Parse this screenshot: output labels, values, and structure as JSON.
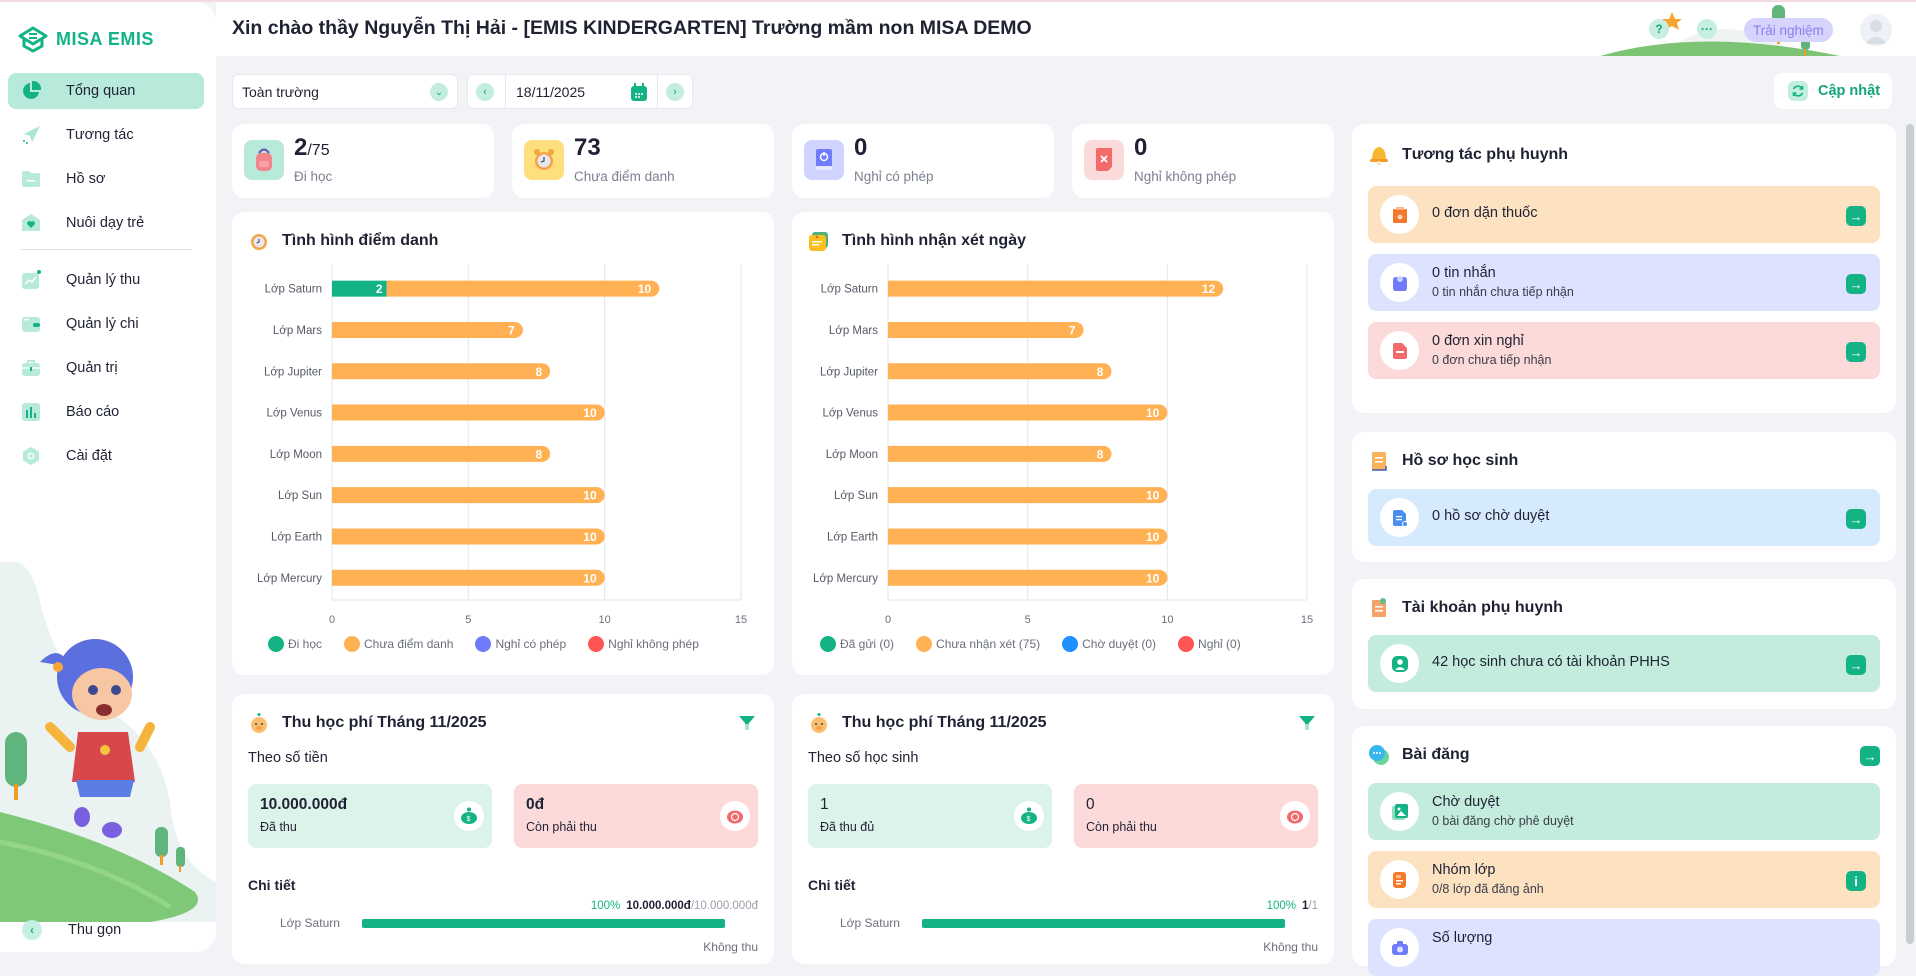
{
  "app": {
    "brand": "MISA EMIS"
  },
  "header": {
    "title": "Xin chào thầy Nguyễn Thị Hải - [EMIS KINDERGARTEN] Trường mầm non MISA DEMO",
    "help_icon": "?",
    "more_icon": "···",
    "trial_label": "Trải nghiệm"
  },
  "sidebar": {
    "items": [
      {
        "label": "Tổng quan",
        "icon": "pie-chart-icon",
        "active": true
      },
      {
        "label": "Tương tác",
        "icon": "paper-plane-icon"
      },
      {
        "label": "Hồ sơ",
        "icon": "folder-icon"
      },
      {
        "label": "Nuôi dạy trẻ",
        "icon": "heart-house-icon"
      },
      {
        "label": "Quản lý thu",
        "icon": "trend-icon"
      },
      {
        "label": "Quản lý chi",
        "icon": "wallet-icon"
      },
      {
        "label": "Quản trị",
        "icon": "briefcase-icon"
      },
      {
        "label": "Báo cáo",
        "icon": "bar-chart-icon"
      },
      {
        "label": "Cài đặt",
        "icon": "settings-icon"
      }
    ],
    "collapse_label": "Thu gọn"
  },
  "toolbar": {
    "scope_value": "Toàn trường",
    "date_value": "18/11/2025",
    "refresh_label": "Cập nhật"
  },
  "stats": [
    {
      "value": "2",
      "suffix": "/75",
      "label": "Đi học"
    },
    {
      "value": "73",
      "suffix": "",
      "label": "Chưa điểm danh"
    },
    {
      "value": "0",
      "suffix": "",
      "label": "Nghỉ có phép"
    },
    {
      "value": "0",
      "suffix": "",
      "label": "Nghỉ không phép"
    }
  ],
  "chart_data": [
    {
      "type": "bar",
      "orientation": "horizontal",
      "stacked": true,
      "title": "Tình hình điểm danh",
      "categories": [
        "Lớp Saturn",
        "Lớp Mars",
        "Lớp Jupiter",
        "Lớp Venus",
        "Lớp Moon",
        "Lớp Sun",
        "Lớp Earth",
        "Lớp Mercury"
      ],
      "series": [
        {
          "name": "Đi học",
          "color": "#13b385",
          "values": [
            2,
            0,
            0,
            0,
            0,
            0,
            0,
            0
          ]
        },
        {
          "name": "Chưa điểm danh",
          "color": "#ffb153",
          "values": [
            10,
            7,
            8,
            10,
            8,
            10,
            10,
            10
          ]
        },
        {
          "name": "Nghỉ có phép",
          "color": "#6f7bfb",
          "values": [
            0,
            0,
            0,
            0,
            0,
            0,
            0,
            0
          ]
        },
        {
          "name": "Nghỉ không phép",
          "color": "#ff5454",
          "values": [
            0,
            0,
            0,
            0,
            0,
            0,
            0,
            0
          ]
        }
      ],
      "xlim": [
        0,
        15
      ],
      "xticks": [
        0,
        5,
        10,
        15
      ],
      "grid": true,
      "legend": "bottom"
    },
    {
      "type": "bar",
      "orientation": "horizontal",
      "stacked": true,
      "title": "Tình hình nhận xét ngày",
      "categories": [
        "Lớp Saturn",
        "Lớp Mars",
        "Lớp Jupiter",
        "Lớp Venus",
        "Lớp Moon",
        "Lớp Sun",
        "Lớp Earth",
        "Lớp Mercury"
      ],
      "series": [
        {
          "name": "Đã gửi (0)",
          "color": "#13b385",
          "values": [
            0,
            0,
            0,
            0,
            0,
            0,
            0,
            0
          ]
        },
        {
          "name": "Chưa nhận xét (75)",
          "color": "#ffb153",
          "values": [
            12,
            7,
            8,
            10,
            8,
            10,
            10,
            10
          ]
        },
        {
          "name": "Chờ duyệt (0)",
          "color": "#1e90ff",
          "values": [
            0,
            0,
            0,
            0,
            0,
            0,
            0,
            0
          ]
        },
        {
          "name": "Nghỉ (0)",
          "color": "#ff5454",
          "values": [
            0,
            0,
            0,
            0,
            0,
            0,
            0,
            0
          ]
        }
      ],
      "xlim": [
        0,
        15
      ],
      "xticks": [
        0,
        5,
        10,
        15
      ],
      "grid": true,
      "legend": "bottom"
    }
  ],
  "fees": [
    {
      "title": "Thu học phí Tháng 11/2025",
      "subtitle": "Theo số tiền",
      "collected_value": "10.000.000đ",
      "collected_label": "Đã thu",
      "remaining_value": "0đ",
      "remaining_label": "Còn phải thu",
      "detail_label": "Chi tiết",
      "rows": [
        {
          "class": "Lớp Saturn",
          "percent_text": "100%",
          "progress": 1.0,
          "amount": "10.000.000đ",
          "total": "/10.000.000đ",
          "note": "Không thu"
        }
      ]
    },
    {
      "title": "Thu học phí Tháng 11/2025",
      "subtitle": "Theo số học sinh",
      "collected_value": "1",
      "collected_label": "Đã thu đủ",
      "remaining_value": "0",
      "remaining_label": "Còn phải thu",
      "detail_label": "Chi tiết",
      "rows": [
        {
          "class": "Lớp Saturn",
          "percent_text": "100%",
          "progress": 1.0,
          "amount": "1",
          "total": "/1",
          "note": "Không thu"
        }
      ]
    }
  ],
  "right": {
    "parent_interaction": {
      "title": "Tương tác phụ huynh",
      "rows": [
        {
          "title": "0 đơn dặn thuốc",
          "sub": "",
          "bg": "#fde2c2"
        },
        {
          "title": "0 tin nhắn",
          "sub": "0 tin nhắn chưa tiếp nhận",
          "bg": "#dde3fe"
        },
        {
          "title": "0 đơn xin nghỉ",
          "sub": "0 đơn chưa tiếp nhận",
          "bg": "#fddada"
        }
      ]
    },
    "student_records": {
      "title": "Hồ sơ học sinh",
      "rows": [
        {
          "title": "0 hồ sơ chờ duyệt",
          "bg": "#d6eafd"
        }
      ]
    },
    "parent_accounts": {
      "title": "Tài khoản phụ huynh",
      "rows": [
        {
          "title": "42 học sinh chưa có tài khoản PHHS",
          "bg": "#c4ecdc"
        }
      ]
    },
    "posts": {
      "title": "Bài đăng",
      "rows": [
        {
          "title": "Chờ duyệt",
          "sub": "0 bài đăng chờ phê duyệt",
          "bg": "#c4ecdc"
        },
        {
          "title": "Nhóm lớp",
          "sub": "0/8 lớp đã đăng ảnh",
          "bg": "#fde2c2"
        },
        {
          "title": "Số lượng",
          "sub": "",
          "bg": "#dde3fe"
        }
      ]
    },
    "arrow_glyph": "→",
    "info_glyph": "i"
  }
}
